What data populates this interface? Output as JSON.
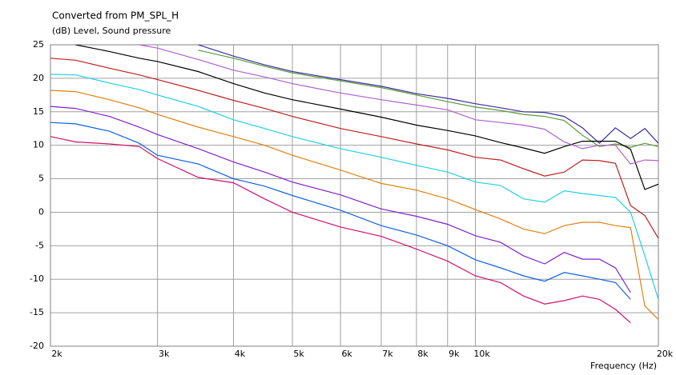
{
  "chart_data": {
    "type": "line",
    "title": "Converted from PM_SPL_H",
    "y_label": "(dB)  Level, Sound pressure",
    "x_label": "Frequency  (Hz)",
    "log_x": true,
    "grid": true,
    "x": [
      2000,
      2200,
      2500,
      2800,
      3000,
      3500,
      4000,
      4500,
      5000,
      6000,
      7000,
      8000,
      9000,
      10000,
      11000,
      12000,
      13000,
      14000,
      15000,
      16000,
      17000,
      18000,
      19000,
      20000
    ],
    "xlim": [
      2000,
      20000
    ],
    "xticks": [
      {
        "value": 2000,
        "label": "2k"
      },
      {
        "value": 3000,
        "label": "3k"
      },
      {
        "value": 4000,
        "label": "4k"
      },
      {
        "value": 5000,
        "label": "5k"
      },
      {
        "value": 6000,
        "label": "6k"
      },
      {
        "value": 7000,
        "label": "7k"
      },
      {
        "value": 8000,
        "label": "8k"
      },
      {
        "value": 9000,
        "label": "9k"
      },
      {
        "value": 10000,
        "label": "10k"
      },
      {
        "value": 20000,
        "label": "20k"
      }
    ],
    "ylim": [
      -20,
      25
    ],
    "yticks": [
      -20,
      -15,
      -10,
      -5,
      0,
      5,
      10,
      15,
      20,
      25
    ],
    "series": [
      {
        "color": "#3a2ea0",
        "values": [
          null,
          null,
          null,
          null,
          null,
          25,
          23.3,
          22,
          21,
          19.8,
          18.8,
          17.7,
          17,
          16.2,
          15.6,
          15,
          14.9,
          14.3,
          12.6,
          10.3,
          12.6,
          11,
          12.5,
          10.3
        ]
      },
      {
        "color": "#5a9a3a",
        "values": [
          null,
          null,
          null,
          null,
          null,
          24.2,
          23,
          21.8,
          20.8,
          19.6,
          18.6,
          17.5,
          16.5,
          15.7,
          15.2,
          14.6,
          14.3,
          13.7,
          11.5,
          9.8,
          10.2,
          9.7,
          10.3,
          9.8
        ]
      },
      {
        "color": "#000000",
        "values": [
          null,
          25,
          24,
          23,
          22.5,
          21,
          19.2,
          17.8,
          16.8,
          15.4,
          14.2,
          13,
          12.2,
          11.4,
          10.4,
          9.6,
          8.8,
          9.8,
          10.6,
          10.6,
          10.6,
          9.4,
          3.4,
          4.2
        ]
      },
      {
        "color": "#b060d0",
        "values": [
          null,
          null,
          null,
          25,
          24.5,
          22.8,
          21.2,
          20.2,
          19.2,
          17.8,
          16.8,
          16,
          15.3,
          13.8,
          13.4,
          13,
          12.4,
          10.5,
          9.5,
          10,
          10,
          7.2,
          7.8,
          7.7
        ]
      },
      {
        "color": "#c02020",
        "values": [
          23,
          22.7,
          21.5,
          20.5,
          19.8,
          18.2,
          16.7,
          15.5,
          14.3,
          12.5,
          11.3,
          10.2,
          9.3,
          8.2,
          7.8,
          6.5,
          5.4,
          6,
          7.8,
          7.7,
          7.3,
          1,
          -0.5,
          -3.9
        ]
      },
      {
        "color": "#20d0e0",
        "values": [
          20.6,
          20.5,
          19.3,
          18.3,
          17.5,
          15.8,
          13.8,
          12.5,
          11.3,
          9.5,
          8.2,
          7,
          6,
          4.5,
          4,
          2,
          1.5,
          3.2,
          2.8,
          2.5,
          2.2,
          0,
          -6.5,
          -13
        ]
      },
      {
        "color": "#e08010",
        "values": [
          18.2,
          18,
          16.8,
          15.6,
          14.6,
          12.7,
          11.3,
          10,
          8.5,
          6.3,
          4.3,
          3.3,
          2,
          0.4,
          -1,
          -2.5,
          -3.2,
          -2,
          -1.5,
          -1.5,
          -2,
          -2.3,
          -14,
          -16
        ]
      },
      {
        "color": "#8020d0",
        "values": [
          15.8,
          15.5,
          14.3,
          12.7,
          11.6,
          9.5,
          7.5,
          6,
          4.5,
          2.6,
          0.5,
          -0.6,
          -1.8,
          -3.5,
          -4.5,
          -6.5,
          -7.7,
          -6,
          -7,
          -7,
          -8.3,
          -12,
          null,
          null
        ]
      },
      {
        "color": "#1060e0",
        "values": [
          13.4,
          13.2,
          12.1,
          10.3,
          8.5,
          7.2,
          5,
          3.9,
          2.5,
          0.3,
          -2,
          -3.4,
          -5,
          -7.1,
          -8.3,
          -9.5,
          -10.3,
          -9,
          -9.5,
          -10,
          -10.5,
          -13,
          null,
          null
        ]
      },
      {
        "color": "#d0106a",
        "values": [
          11.3,
          10.5,
          10.2,
          9.8,
          8,
          5.2,
          4.4,
          2,
          0,
          -2.2,
          -3.6,
          -5.5,
          -7.3,
          -9.5,
          -10.5,
          -12.5,
          -13.7,
          -13.2,
          -12.5,
          -13,
          -14.5,
          -16.5,
          null,
          null
        ]
      }
    ]
  }
}
